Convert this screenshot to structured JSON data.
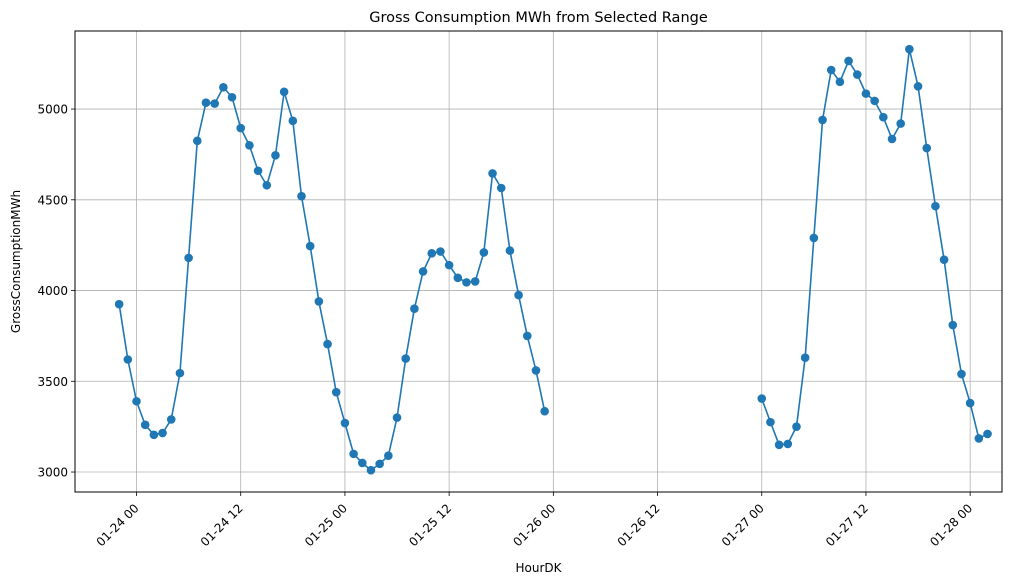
{
  "chart_data": {
    "type": "line",
    "title": "Gross Consumption MWh from Selected Range",
    "xlabel": "HourDK",
    "ylabel": "GrossConsumptionMWh",
    "grid": true,
    "marker": "circle",
    "line_color": "#1f77b4",
    "x_ticks": [
      {
        "date": "2024-01-24T00:00",
        "label": "01-24 00"
      },
      {
        "date": "2024-01-24T12:00",
        "label": "01-24 12"
      },
      {
        "date": "2024-01-25T00:00",
        "label": "01-25 00"
      },
      {
        "date": "2024-01-25T12:00",
        "label": "01-25 12"
      },
      {
        "date": "2024-01-26T00:00",
        "label": "01-26 00"
      },
      {
        "date": "2024-01-26T12:00",
        "label": "01-26 12"
      },
      {
        "date": "2024-01-27T00:00",
        "label": "01-27 00"
      },
      {
        "date": "2024-01-27T12:00",
        "label": "01-27 12"
      },
      {
        "date": "2024-01-28T00:00",
        "label": "01-28 00"
      }
    ],
    "y_ticks": [
      3000,
      3500,
      4000,
      4500,
      5000
    ],
    "xlim": [
      "2024-01-23T16:55",
      "2024-01-28T03:40"
    ],
    "ylim": [
      2890,
      5430
    ],
    "series": [
      {
        "start": "2024-01-23T22:00",
        "step_hours": 1,
        "values": [
          3925,
          3620,
          3390,
          3260,
          3205,
          3215,
          3290,
          3545,
          4180,
          4825,
          5035,
          5030,
          5120,
          5065,
          4895,
          4800,
          4660,
          4580,
          4745,
          5095,
          4935,
          4520,
          4245,
          3940,
          3705,
          3440,
          3270,
          3100,
          3050,
          3010,
          3045,
          3090,
          3300,
          3625,
          3900,
          4105,
          4205,
          4215,
          4140,
          4070,
          4045,
          4050,
          4210,
          4645,
          4565,
          4220,
          3975,
          3750,
          3560,
          3335
        ]
      },
      {
        "start": "2024-01-27T00:00",
        "step_hours": 1,
        "values": [
          3405,
          3275,
          3150,
          3155,
          3250,
          3630,
          4290,
          4940,
          5215,
          5150,
          5265,
          5190,
          5085,
          5045,
          4955,
          4835,
          4920,
          5330,
          5125,
          4785,
          4465,
          4170,
          3810,
          3540,
          3380,
          3185,
          3210
        ]
      }
    ]
  }
}
